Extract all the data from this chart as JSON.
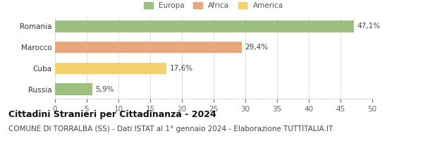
{
  "categories": [
    "Russia",
    "Cuba",
    "Marocco",
    "Romania"
  ],
  "values": [
    5.9,
    17.6,
    29.4,
    47.1
  ],
  "labels": [
    "5,9%",
    "17,6%",
    "29,4%",
    "47,1%"
  ],
  "bar_colors": [
    "#9dc080",
    "#f5d06e",
    "#e8a87c",
    "#9dc080"
  ],
  "legend": [
    {
      "label": "Europa",
      "color": "#9dc080"
    },
    {
      "label": "Africa",
      "color": "#e8a87c"
    },
    {
      "label": "America",
      "color": "#f5d06e"
    }
  ],
  "xlim": [
    0,
    50
  ],
  "xticks": [
    0,
    5,
    10,
    15,
    20,
    25,
    30,
    35,
    40,
    45,
    50
  ],
  "title": "Cittadini Stranieri per Cittadinanza - 2024",
  "subtitle": "COMUNE DI TORRALBA (SS) - Dati ISTAT al 1° gennaio 2024 - Elaborazione TUTTITALIA.IT",
  "title_fontsize": 9,
  "subtitle_fontsize": 7.5,
  "label_fontsize": 7.5,
  "tick_fontsize": 7.5,
  "background_color": "#ffffff",
  "grid_color": "#dddddd"
}
